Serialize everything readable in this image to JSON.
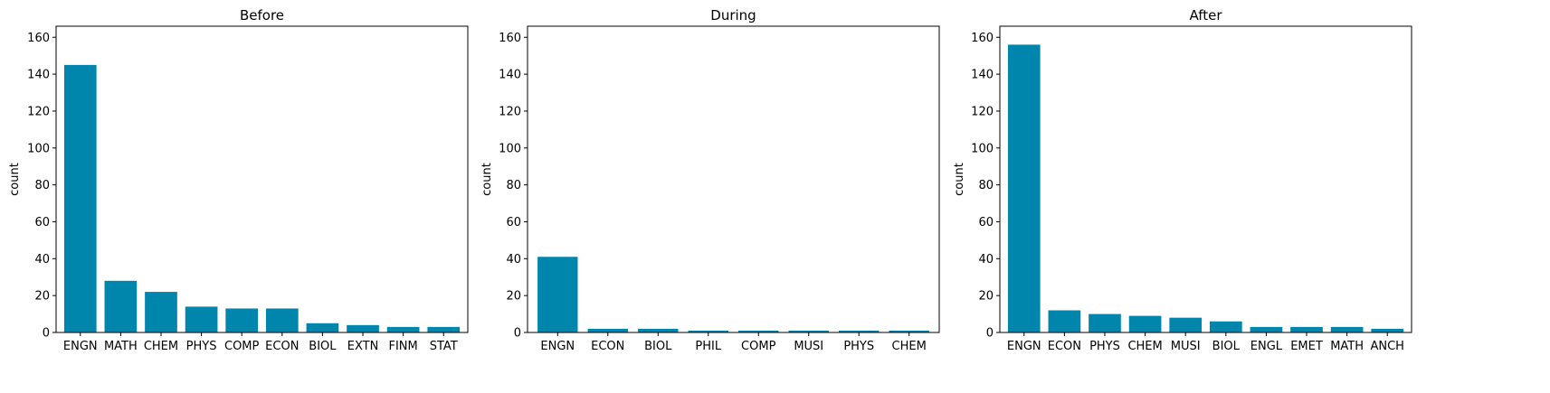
{
  "chart_data": [
    {
      "type": "bar",
      "title": "Before",
      "xlabel": "",
      "ylabel": "count",
      "ylim": [
        0,
        166
      ],
      "yticks": [
        0,
        20,
        40,
        60,
        80,
        100,
        120,
        140,
        160
      ],
      "categories": [
        "ENGN",
        "MATH",
        "CHEM",
        "PHYS",
        "COMP",
        "ECON",
        "BIOL",
        "EXTN",
        "FINM",
        "STAT"
      ],
      "values": [
        145,
        28,
        22,
        14,
        13,
        13,
        5,
        4,
        3,
        3
      ],
      "color": "#0086AD"
    },
    {
      "type": "bar",
      "title": "During",
      "xlabel": "",
      "ylabel": "count",
      "ylim": [
        0,
        166
      ],
      "yticks": [
        0,
        20,
        40,
        60,
        80,
        100,
        120,
        140,
        160
      ],
      "categories": [
        "ENGN",
        "ECON",
        "BIOL",
        "PHIL",
        "COMP",
        "MUSI",
        "PHYS",
        "CHEM"
      ],
      "values": [
        41,
        2,
        2,
        1,
        1,
        1,
        1,
        1
      ],
      "color": "#0086AD"
    },
    {
      "type": "bar",
      "title": "After",
      "xlabel": "",
      "ylabel": "count",
      "ylim": [
        0,
        166
      ],
      "yticks": [
        0,
        20,
        40,
        60,
        80,
        100,
        120,
        140,
        160
      ],
      "categories": [
        "ENGN",
        "ECON",
        "PHYS",
        "CHEM",
        "MUSI",
        "BIOL",
        "ENGL",
        "EMET",
        "MATH",
        "ANCH"
      ],
      "values": [
        156,
        12,
        10,
        9,
        8,
        6,
        3,
        3,
        3,
        2
      ],
      "color": "#0086AD"
    }
  ]
}
